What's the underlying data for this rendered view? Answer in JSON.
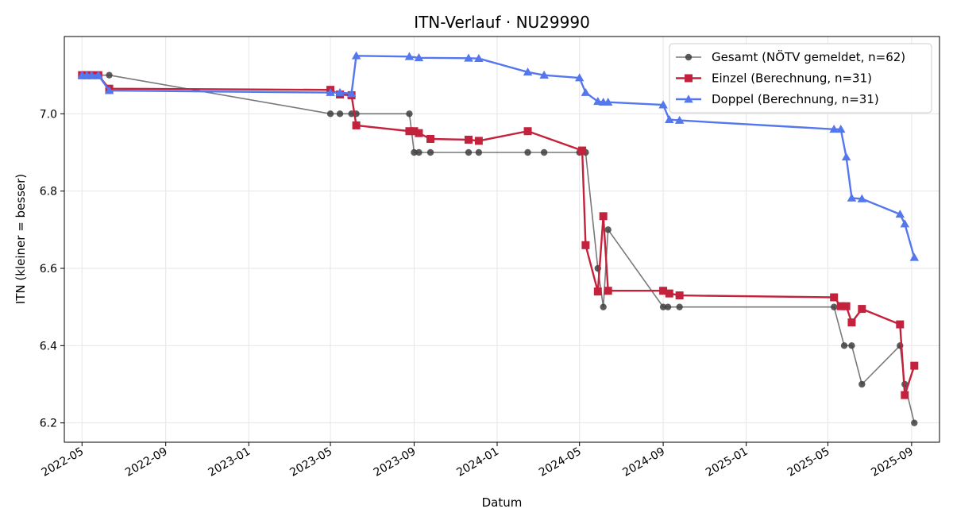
{
  "chart_data": {
    "type": "line",
    "title": "ITN-Verlauf · NU29990",
    "xlabel": "Datum",
    "ylabel": "ITN  (kleiner = besser)",
    "xlim": [
      "2022-04-05",
      "2025-10-12"
    ],
    "ylim": [
      6.15,
      7.2
    ],
    "x_ticks": [
      "2022-05",
      "2022-09",
      "2023-01",
      "2023-05",
      "2023-09",
      "2024-01",
      "2024-05",
      "2024-09",
      "2025-01",
      "2025-05",
      "2025-09"
    ],
    "y_ticks": [
      "6.2",
      "6.4",
      "6.6",
      "6.8",
      "7.0"
    ],
    "grid": true,
    "legend_position": "top-right",
    "series": [
      {
        "name": "Gesamt (NÖTV gemeldet, n=62)",
        "color": "#404040",
        "marker": "circle",
        "points": [
          [
            "2022-05-01",
            7.1
          ],
          [
            "2022-05-05",
            7.1
          ],
          [
            "2022-05-10",
            7.1
          ],
          [
            "2022-05-15",
            7.1
          ],
          [
            "2022-05-20",
            7.1
          ],
          [
            "2022-06-10",
            7.1
          ],
          [
            "2023-05-01",
            7.0
          ],
          [
            "2023-05-15",
            7.0
          ],
          [
            "2023-06-01",
            7.0
          ],
          [
            "2023-06-08",
            7.0
          ],
          [
            "2023-08-25",
            7.0
          ],
          [
            "2023-09-01",
            6.9
          ],
          [
            "2023-09-08",
            6.9
          ],
          [
            "2023-09-25",
            6.9
          ],
          [
            "2023-11-20",
            6.9
          ],
          [
            "2023-12-05",
            6.9
          ],
          [
            "2024-02-15",
            6.9
          ],
          [
            "2024-03-10",
            6.9
          ],
          [
            "2024-05-01",
            6.9
          ],
          [
            "2024-05-10",
            6.9
          ],
          [
            "2024-05-28",
            6.6
          ],
          [
            "2024-06-05",
            6.5
          ],
          [
            "2024-06-12",
            6.7
          ],
          [
            "2024-09-01",
            6.5
          ],
          [
            "2024-09-08",
            6.5
          ],
          [
            "2024-09-25",
            6.5
          ],
          [
            "2025-05-10",
            6.5
          ],
          [
            "2025-05-25",
            6.4
          ],
          [
            "2025-06-05",
            6.4
          ],
          [
            "2025-06-20",
            6.3
          ],
          [
            "2025-08-15",
            6.4
          ],
          [
            "2025-08-22",
            6.3
          ],
          [
            "2025-09-05",
            6.2
          ]
        ]
      },
      {
        "name": "Einzel (Berechnung, n=31)",
        "color": "#c4213d",
        "marker": "square",
        "points": [
          [
            "2022-05-01",
            7.1
          ],
          [
            "2022-05-08",
            7.1
          ],
          [
            "2022-05-15",
            7.1
          ],
          [
            "2022-05-25",
            7.1
          ],
          [
            "2022-06-10",
            7.065
          ],
          [
            "2023-05-01",
            7.062
          ],
          [
            "2023-05-15",
            7.05
          ],
          [
            "2023-06-01",
            7.048
          ],
          [
            "2023-06-08",
            6.97
          ],
          [
            "2023-08-25",
            6.955
          ],
          [
            "2023-09-01",
            6.955
          ],
          [
            "2023-09-08",
            6.95
          ],
          [
            "2023-09-25",
            6.935
          ],
          [
            "2023-11-20",
            6.933
          ],
          [
            "2023-12-05",
            6.93
          ],
          [
            "2024-02-15",
            6.955
          ],
          [
            "2024-05-05",
            6.905
          ],
          [
            "2024-05-10",
            6.66
          ],
          [
            "2024-05-28",
            6.54
          ],
          [
            "2024-06-05",
            6.735
          ],
          [
            "2024-06-12",
            6.542
          ],
          [
            "2024-09-01",
            6.542
          ],
          [
            "2024-09-10",
            6.535
          ],
          [
            "2024-09-25",
            6.53
          ],
          [
            "2025-05-10",
            6.525
          ],
          [
            "2025-05-20",
            6.502
          ],
          [
            "2025-05-28",
            6.502
          ],
          [
            "2025-06-05",
            6.46
          ],
          [
            "2025-06-20",
            6.495
          ],
          [
            "2025-08-15",
            6.455
          ],
          [
            "2025-08-22",
            6.272
          ],
          [
            "2025-09-05",
            6.348
          ]
        ]
      },
      {
        "name": "Doppel (Berechnung, n=31)",
        "color": "#5577ee",
        "marker": "triangle",
        "points": [
          [
            "2022-05-01",
            7.1
          ],
          [
            "2022-05-08",
            7.1
          ],
          [
            "2022-05-15",
            7.1
          ],
          [
            "2022-05-25",
            7.1
          ],
          [
            "2022-06-10",
            7.06
          ],
          [
            "2023-05-01",
            7.055
          ],
          [
            "2023-05-15",
            7.055
          ],
          [
            "2023-06-01",
            7.052
          ],
          [
            "2023-06-08",
            7.15
          ],
          [
            "2023-08-25",
            7.148
          ],
          [
            "2023-09-08",
            7.145
          ],
          [
            "2023-11-20",
            7.144
          ],
          [
            "2023-12-05",
            7.143
          ],
          [
            "2024-02-15",
            7.108
          ],
          [
            "2024-03-10",
            7.1
          ],
          [
            "2024-05-01",
            7.093
          ],
          [
            "2024-05-10",
            7.055
          ],
          [
            "2024-05-28",
            7.032
          ],
          [
            "2024-06-05",
            7.03
          ],
          [
            "2024-06-12",
            7.03
          ],
          [
            "2024-09-01",
            7.023
          ],
          [
            "2024-09-10",
            6.985
          ],
          [
            "2024-09-25",
            6.983
          ],
          [
            "2025-05-10",
            6.96
          ],
          [
            "2025-05-20",
            6.96
          ],
          [
            "2025-05-28",
            6.888
          ],
          [
            "2025-06-05",
            6.782
          ],
          [
            "2025-06-20",
            6.78
          ],
          [
            "2025-08-15",
            6.74
          ],
          [
            "2025-08-22",
            6.715
          ],
          [
            "2025-09-05",
            6.628
          ]
        ]
      }
    ]
  }
}
